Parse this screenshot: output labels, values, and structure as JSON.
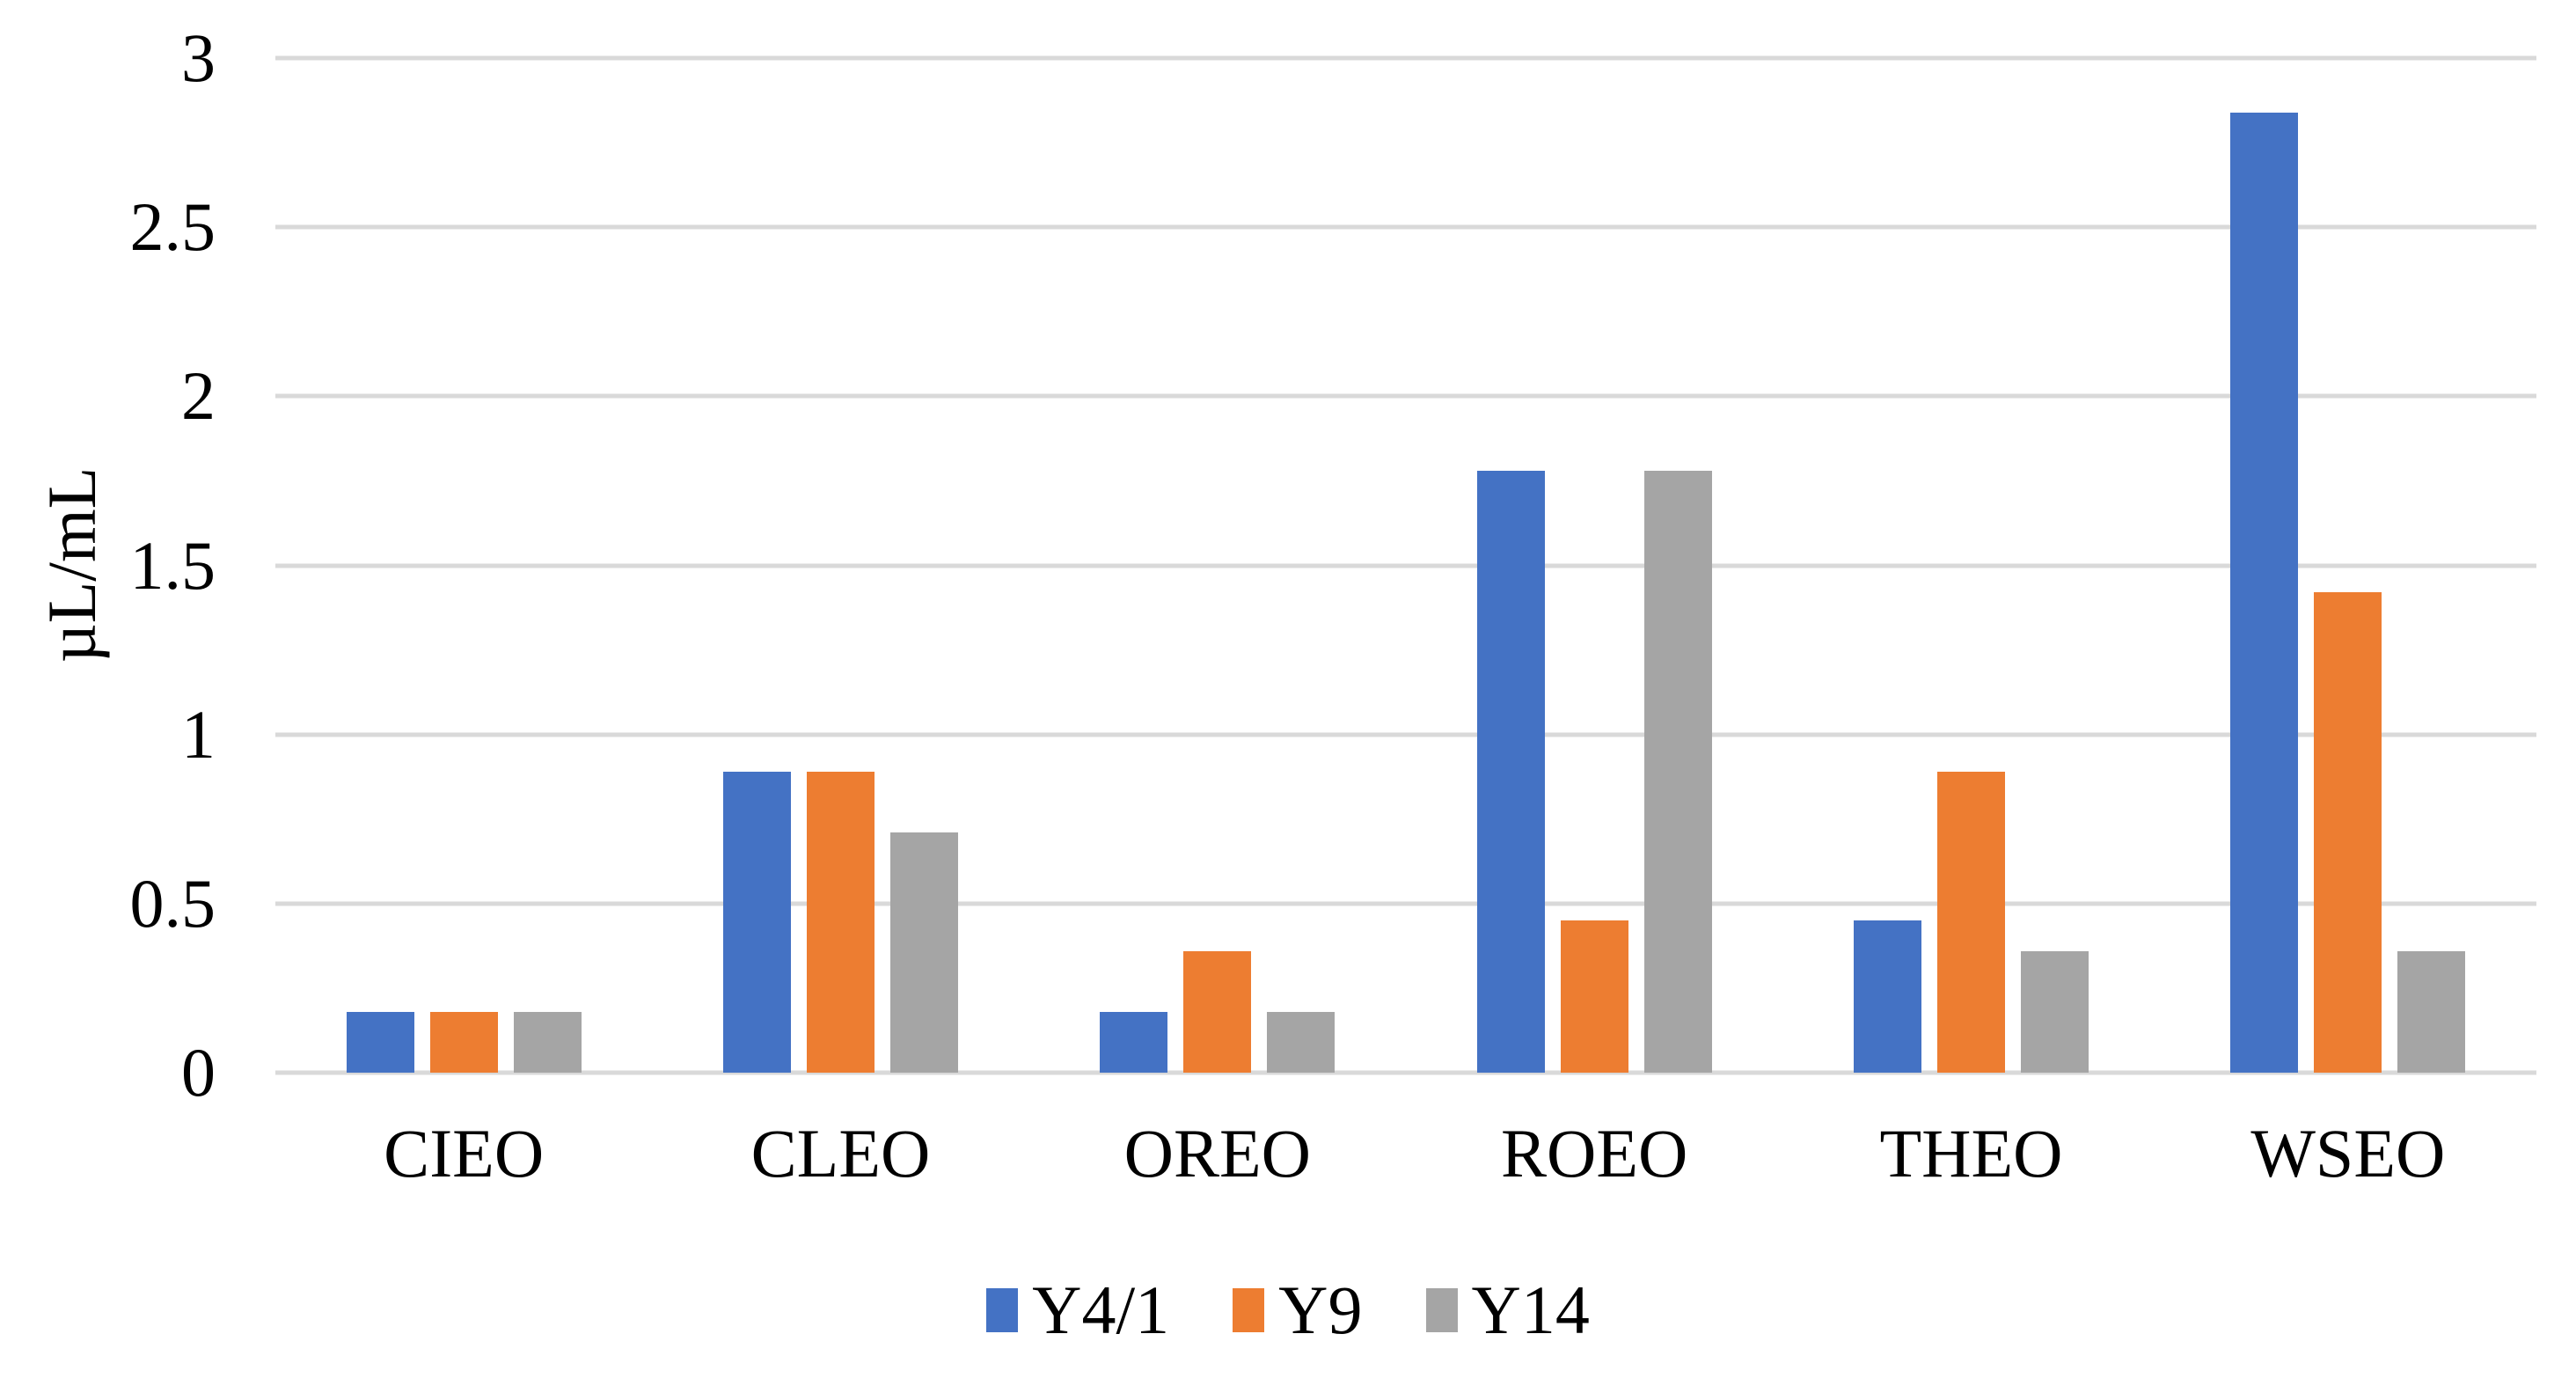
{
  "chart_data": {
    "type": "bar",
    "title": "",
    "categories": [
      "CIEO",
      "CLEO",
      "OREO",
      "ROEO",
      "THEO",
      "WSEO"
    ],
    "series": [
      {
        "name": "Y4/1",
        "color": "#4472C4",
        "values": [
          0.18,
          0.89,
          0.18,
          1.78,
          0.45,
          2.84
        ]
      },
      {
        "name": "Y9",
        "color": "#ED7D31",
        "values": [
          0.18,
          0.89,
          0.36,
          0.45,
          0.89,
          1.42
        ]
      },
      {
        "name": "Y14",
        "color": "#A5A5A5",
        "values": [
          0.18,
          0.71,
          0.18,
          1.78,
          0.36,
          0.36
        ]
      }
    ],
    "xlabel": "",
    "ylabel": "µL/mL",
    "ylim": [
      0,
      3
    ],
    "ytick_labels": [
      "3",
      "2.5",
      "2",
      "1.5",
      "1",
      "0.5",
      "0"
    ],
    "grid": true,
    "gridline_color": "#D9D9D9",
    "background_color": "#FFFFFF",
    "text_color": "#000000",
    "legend_position": "bottom"
  }
}
